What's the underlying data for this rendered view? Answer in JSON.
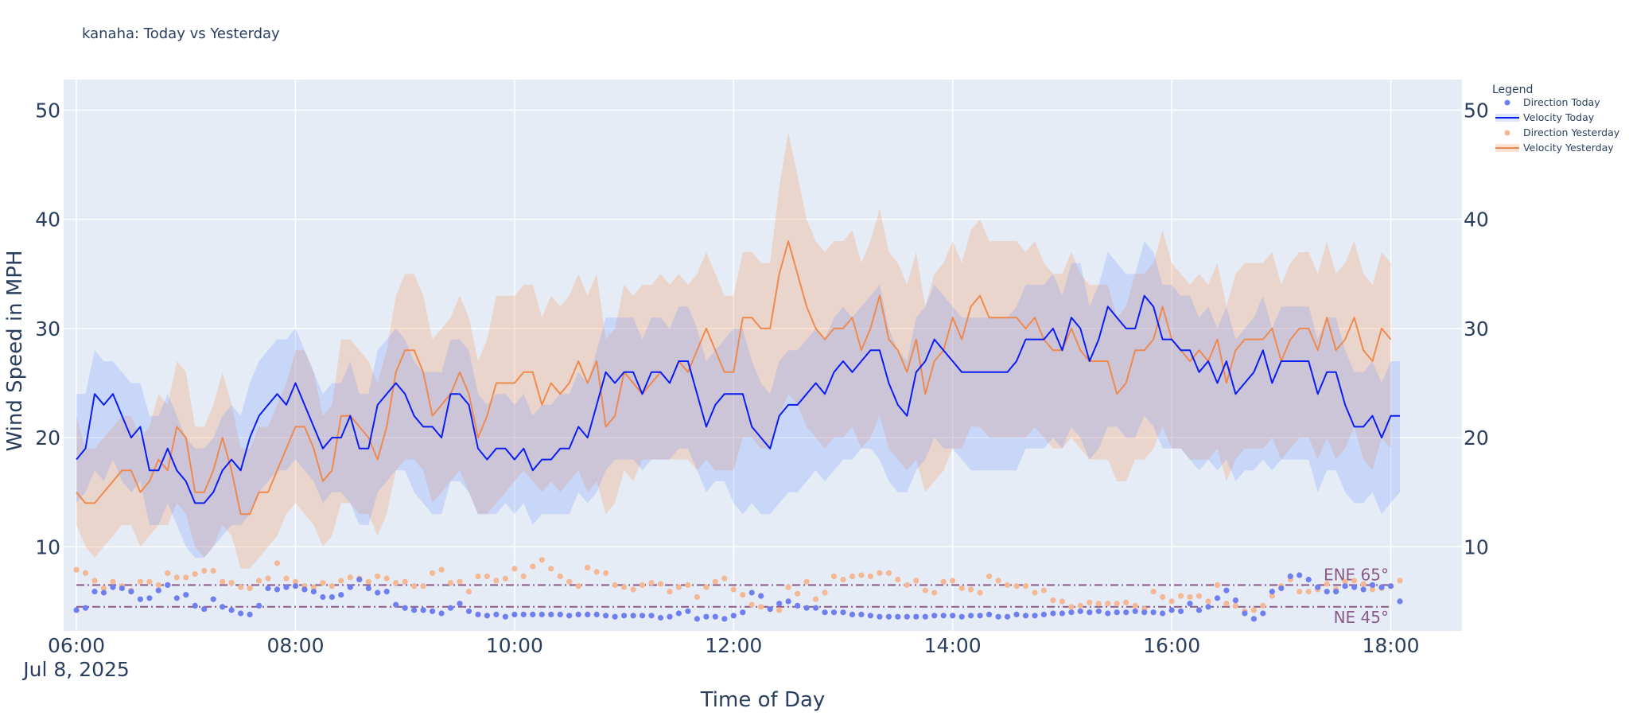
{
  "title": "kanaha: Today vs Yesterday",
  "chart_data": {
    "type": "line",
    "title": "kanaha: Today vs Yesterday",
    "xlabel": "Time of Day",
    "ylabel": "Wind Speed in MPH",
    "x_start": "06:00",
    "x_end": "18:00",
    "x_interval_minutes": 5,
    "xlim": [
      "05:53",
      "18:39"
    ],
    "ylim": [
      2.3,
      52.8
    ],
    "x_ticks": [
      "06:00",
      "08:00",
      "10:00",
      "12:00",
      "14:00",
      "16:00",
      "18:00"
    ],
    "x_tick_date": "Jul 8, 2025",
    "y_ticks": [
      10,
      20,
      30,
      40,
      50
    ],
    "y_axis_mirrored_right": true,
    "grid": true,
    "plot_background": "#e5ecf6",
    "legend": {
      "title": "Legend",
      "placement": "right",
      "items": [
        "Direction Today",
        "Velocity Today",
        "Direction Yesterday",
        "Velocity Yesterday"
      ]
    },
    "reference_lines": [
      {
        "label": "ENE 65°",
        "y": 6.5,
        "color": "#8a5a88"
      },
      {
        "label": "NE 45°",
        "y": 4.5,
        "color": "#8a5a88"
      }
    ],
    "series": [
      {
        "name": "Velocity Today",
        "kind": "line_with_band",
        "color": "#0a1ef0",
        "band_color": "rgba(99,140,255,0.22)",
        "values": [
          18,
          19,
          24,
          23,
          24,
          22,
          20,
          21,
          17,
          17,
          19,
          17,
          16,
          14,
          14,
          15,
          17,
          18,
          17,
          20,
          22,
          23,
          24,
          23,
          25,
          23,
          21,
          19,
          20,
          20,
          22,
          19,
          19,
          23,
          24,
          25,
          24,
          22,
          21,
          21,
          20,
          24,
          24,
          23,
          19,
          18,
          19,
          19,
          18,
          19,
          17,
          18,
          18,
          19,
          19,
          21,
          20,
          23,
          26,
          25,
          26,
          26,
          24,
          26,
          26,
          25,
          27,
          27,
          24,
          21,
          23,
          24,
          24,
          24,
          21,
          20,
          19,
          22,
          23,
          23,
          24,
          25,
          24,
          26,
          27,
          26,
          27,
          28,
          28,
          25,
          23,
          22,
          26,
          27,
          29,
          28,
          27,
          26,
          26,
          26,
          26,
          26,
          26,
          27,
          29,
          29,
          29,
          30,
          28,
          31,
          30,
          27,
          29,
          32,
          31,
          30,
          30,
          33,
          32,
          29,
          29,
          28,
          28,
          26,
          27,
          25,
          27,
          24,
          25,
          26,
          28,
          25,
          27,
          27,
          27,
          27,
          24,
          26,
          26,
          23,
          21,
          21,
          22,
          20,
          22,
          22
        ],
        "band_low": [
          14,
          15,
          17,
          16,
          18,
          16,
          15,
          16,
          12,
          12,
          14,
          12,
          10,
          9,
          9,
          10,
          11,
          12,
          12,
          13,
          15,
          16,
          17,
          17,
          18,
          17,
          16,
          14,
          15,
          15,
          14,
          12,
          12,
          15,
          16,
          17,
          17,
          15,
          14,
          13,
          13,
          16,
          16,
          15,
          13,
          13,
          13,
          14,
          13,
          14,
          12,
          13,
          13,
          13,
          13,
          15,
          14,
          15,
          17,
          18,
          18,
          18,
          17,
          18,
          18,
          18,
          19,
          19,
          17,
          15,
          16,
          16,
          14,
          13,
          14,
          13,
          13,
          14,
          15,
          15,
          16,
          17,
          16,
          17,
          18,
          18,
          19,
          19,
          18,
          16,
          15,
          15,
          17,
          18,
          20,
          19,
          19,
          18,
          17,
          17,
          17,
          17,
          17,
          17,
          19,
          19,
          19,
          20,
          19,
          21,
          20,
          18,
          19,
          21,
          21,
          20,
          20,
          22,
          21,
          19,
          19,
          19,
          18,
          17,
          18,
          17,
          18,
          16,
          17,
          17,
          18,
          17,
          18,
          18,
          18,
          18,
          15,
          17,
          17,
          15,
          14,
          14,
          15,
          13,
          14,
          15
        ],
        "band_high": [
          24,
          24,
          28,
          27,
          27,
          26,
          25,
          25,
          22,
          22,
          24,
          22,
          20,
          19,
          19,
          20,
          22,
          23,
          22,
          25,
          27,
          28,
          29,
          29,
          30,
          28,
          26,
          24,
          25,
          25,
          27,
          24,
          24,
          28,
          29,
          30,
          29,
          27,
          26,
          26,
          26,
          29,
          29,
          28,
          24,
          23,
          24,
          24,
          23,
          24,
          22,
          23,
          23,
          24,
          24,
          26,
          25,
          28,
          31,
          31,
          31,
          31,
          29,
          31,
          31,
          30,
          32,
          32,
          30,
          27,
          28,
          29,
          30,
          30,
          27,
          25,
          24,
          27,
          28,
          28,
          29,
          30,
          29,
          31,
          32,
          31,
          32,
          33,
          34,
          30,
          28,
          27,
          31,
          32,
          34,
          33,
          32,
          31,
          31,
          31,
          31,
          31,
          31,
          32,
          34,
          34,
          34,
          35,
          33,
          36,
          36,
          32,
          34,
          37,
          36,
          35,
          35,
          38,
          37,
          34,
          34,
          33,
          33,
          31,
          32,
          30,
          32,
          29,
          30,
          31,
          33,
          30,
          32,
          32,
          32,
          32,
          29,
          31,
          31,
          28,
          26,
          26,
          27,
          25,
          27,
          27
        ]
      },
      {
        "name": "Velocity Yesterday",
        "kind": "line_with_band",
        "color": "#ef8a4e",
        "band_color": "rgba(244,160,110,0.30)",
        "values": [
          15,
          14,
          14,
          15,
          16,
          17,
          17,
          15,
          16,
          18,
          17,
          21,
          20,
          15,
          15,
          17,
          20,
          17,
          13,
          13,
          15,
          15,
          17,
          19,
          21,
          21,
          19,
          16,
          17,
          22,
          22,
          21,
          20,
          18,
          21,
          26,
          28,
          28,
          26,
          22,
          23,
          24,
          26,
          24,
          20,
          22,
          25,
          25,
          25,
          26,
          26,
          23,
          25,
          24,
          25,
          27,
          25,
          27,
          21,
          22,
          26,
          25,
          24,
          25,
          26,
          25,
          27,
          26,
          28,
          30,
          28,
          26,
          26,
          31,
          31,
          30,
          30,
          35,
          38,
          35,
          32,
          30,
          29,
          30,
          30,
          31,
          28,
          30,
          33,
          29,
          28,
          26,
          29,
          24,
          27,
          28,
          31,
          29,
          32,
          33,
          31,
          31,
          31,
          31,
          30,
          31,
          29,
          28,
          28,
          30,
          28,
          27,
          27,
          27,
          24,
          25,
          28,
          28,
          29,
          32,
          29,
          28,
          27,
          28,
          27,
          29,
          25,
          28,
          29,
          29,
          29,
          30,
          27,
          29,
          30,
          30,
          28,
          31,
          28,
          29,
          31,
          28,
          27,
          30,
          29
        ],
        "band_low": [
          12,
          10,
          9,
          10,
          11,
          12,
          12,
          10,
          11,
          12,
          12,
          14,
          13,
          10,
          9,
          10,
          12,
          11,
          8,
          8,
          9,
          10,
          11,
          13,
          14,
          13,
          12,
          10,
          11,
          14,
          14,
          13,
          13,
          11,
          13,
          17,
          18,
          18,
          17,
          14,
          15,
          16,
          17,
          15,
          13,
          13,
          14,
          15,
          16,
          17,
          16,
          15,
          16,
          15,
          16,
          17,
          15,
          16,
          13,
          14,
          17,
          16,
          18,
          18,
          18,
          18,
          18,
          18,
          17,
          18,
          17,
          17,
          17,
          20,
          20,
          19,
          19,
          22,
          24,
          23,
          21,
          20,
          19,
          20,
          20,
          21,
          19,
          20,
          22,
          19,
          18,
          17,
          18,
          15,
          16,
          17,
          19,
          19,
          21,
          21,
          20,
          20,
          20,
          20,
          20,
          21,
          20,
          19,
          19,
          20,
          19,
          18,
          18,
          18,
          16,
          16,
          18,
          18,
          19,
          21,
          19,
          19,
          18,
          18,
          18,
          19,
          16,
          18,
          19,
          19,
          19,
          20,
          18,
          19,
          20,
          20,
          18,
          20,
          18,
          19,
          21,
          18,
          17,
          20,
          19
        ],
        "band_high": [
          22,
          19,
          19,
          20,
          21,
          22,
          22,
          20,
          21,
          24,
          23,
          27,
          26,
          21,
          21,
          23,
          26,
          23,
          19,
          19,
          21,
          21,
          23,
          25,
          28,
          28,
          26,
          22,
          23,
          29,
          29,
          28,
          27,
          25,
          28,
          33,
          35,
          35,
          33,
          29,
          30,
          31,
          33,
          31,
          27,
          29,
          33,
          33,
          33,
          34,
          34,
          31,
          33,
          32,
          33,
          35,
          33,
          35,
          29,
          30,
          34,
          33,
          34,
          34,
          35,
          34,
          35,
          34,
          35,
          37,
          35,
          33,
          33,
          37,
          37,
          36,
          36,
          43,
          48,
          44,
          40,
          38,
          37,
          38,
          38,
          39,
          36,
          38,
          41,
          37,
          36,
          34,
          37,
          32,
          35,
          36,
          38,
          36,
          39,
          40,
          38,
          38,
          38,
          38,
          37,
          38,
          36,
          35,
          35,
          37,
          35,
          34,
          34,
          34,
          31,
          32,
          35,
          35,
          36,
          39,
          36,
          35,
          34,
          35,
          34,
          36,
          32,
          35,
          36,
          36,
          36,
          37,
          34,
          36,
          37,
          37,
          35,
          38,
          35,
          36,
          38,
          35,
          34,
          37,
          36
        ]
      },
      {
        "name": "Direction Today",
        "kind": "scatter",
        "color": "#6f7fef",
        "values": [
          4.2,
          4.4,
          5.9,
          5.8,
          6.3,
          6.2,
          5.9,
          5.2,
          5.3,
          6,
          6.5,
          5.3,
          5.6,
          4.6,
          4.3,
          5.2,
          4.5,
          4.2,
          3.9,
          3.8,
          4.6,
          6.2,
          6.1,
          6.3,
          6.4,
          6.1,
          5.9,
          5.4,
          5.4,
          5.6,
          6.3,
          7,
          6.2,
          5.8,
          5.9,
          4.7,
          4.4,
          4.2,
          4.2,
          4.1,
          3.9,
          4.4,
          4.8,
          4.1,
          3.8,
          3.7,
          3.8,
          3.6,
          3.8,
          3.8,
          3.8,
          3.8,
          3.8,
          3.8,
          3.7,
          3.8,
          3.8,
          3.8,
          3.7,
          3.6,
          3.7,
          3.7,
          3.7,
          3.7,
          3.5,
          3.6,
          3.9,
          4.1,
          3.4,
          3.6,
          3.6,
          3.4,
          3.7,
          4,
          5.8,
          5.5,
          4.3,
          4.8,
          5,
          4.6,
          4.4,
          4.4,
          4,
          4,
          4,
          3.8,
          3.8,
          3.7,
          3.6,
          3.6,
          3.6,
          3.6,
          3.6,
          3.6,
          3.7,
          3.7,
          3.7,
          3.6,
          3.7,
          3.7,
          3.8,
          3.6,
          3.6,
          3.8,
          3.7,
          3.7,
          3.8,
          3.9,
          3.9,
          4,
          4.1,
          4,
          4.1,
          3.9,
          4,
          4,
          4.1,
          4,
          4,
          3.9,
          4.2,
          4.1,
          4.8,
          4.2,
          4.5,
          5.3,
          6,
          5.1,
          3.9,
          3.4,
          3.9,
          5.9,
          6.2,
          7.3,
          7.4,
          7,
          6.3,
          5.9,
          5.9,
          6.4,
          6.3,
          6.1,
          6.5,
          6.3,
          6.4,
          5
        ],
        "x_offset_minutes": 0
      },
      {
        "name": "Direction Yesterday",
        "kind": "scatter",
        "color": "#f5b894",
        "values": [
          7.9,
          7.6,
          6.9,
          6.2,
          6.8,
          6.4,
          6,
          6.8,
          6.8,
          6.5,
          7.6,
          7.2,
          7.2,
          7.5,
          7.8,
          7.8,
          6.8,
          6.7,
          6.3,
          6.2,
          6.9,
          7.1,
          8.5,
          7.1,
          6.8,
          6.4,
          6.3,
          6.7,
          6.4,
          6.9,
          7.2,
          7.1,
          6.8,
          7.3,
          7.1,
          6.7,
          6.8,
          6.4,
          6.4,
          7.6,
          7.9,
          6.7,
          6.8,
          5.9,
          7.3,
          7.3,
          6.9,
          7.1,
          8,
          7.3,
          8.2,
          8.8,
          8,
          7.3,
          6.8,
          6.4,
          8.1,
          7.7,
          7.6,
          6.5,
          6.3,
          6.1,
          6.5,
          6.7,
          6.6,
          5.9,
          6.3,
          6.5,
          5.4,
          6.3,
          6.8,
          7.1,
          6.1,
          5.6,
          4.7,
          4.5,
          4.3,
          4.2,
          6.3,
          5.7,
          6.8,
          5.2,
          5.8,
          7.3,
          7,
          7.3,
          7.4,
          7.3,
          7.6,
          7.6,
          7,
          6.5,
          6.9,
          6,
          5.8,
          6.8,
          6.9,
          6.2,
          6.1,
          5.8,
          7.3,
          6.9,
          6.5,
          6.4,
          6.4,
          5.8,
          6,
          5.1,
          5,
          4.5,
          4.6,
          4.9,
          4.8,
          4.8,
          4.8,
          4.9,
          4.6,
          4.3,
          5.9,
          5.4,
          5,
          5.5,
          5.4,
          5.5,
          5,
          6.5,
          4.8,
          4.6,
          4.1,
          4.2,
          4.6,
          5.5,
          6.4,
          7,
          5.9,
          5.9,
          6.1,
          6.6,
          6.1,
          6.8,
          6.9,
          6.6,
          6.1,
          6.2,
          6.4,
          6.9
        ],
        "x_offset_minutes": 0
      }
    ]
  }
}
